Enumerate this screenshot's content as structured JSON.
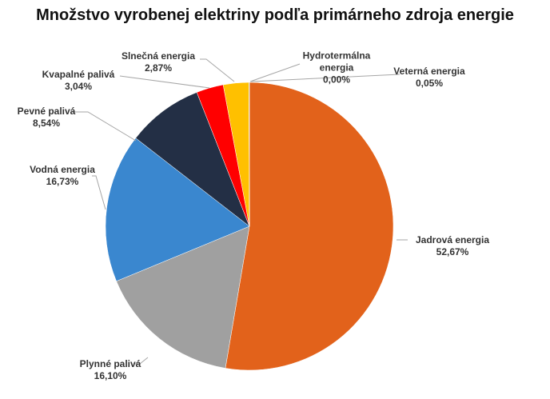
{
  "chart_data": {
    "type": "pie",
    "title": "Množstvo vyrobenej elektriny podľa primárneho zdroja energie",
    "categories": [
      "Jadrová energia",
      "Plynné palivá",
      "Vodná energia",
      "Pevné palivá",
      "Kvapalné palivá",
      "Slnečná energia",
      "Hydrotermálna energia",
      "Veterná energia"
    ],
    "values": [
      52.67,
      16.1,
      16.73,
      8.54,
      3.04,
      2.87,
      0.0,
      0.05
    ],
    "value_labels": [
      "52,67%",
      "16,10%",
      "16,73%",
      "8,54%",
      "3,04%",
      "2,87%",
      "0,00%",
      "0,05%"
    ],
    "colors": [
      "#e2621b",
      "#a0a0a0",
      "#3a87cf",
      "#232f45",
      "#ff0000",
      "#ffc000",
      "#5b9bd5",
      "#70ad47"
    ]
  }
}
